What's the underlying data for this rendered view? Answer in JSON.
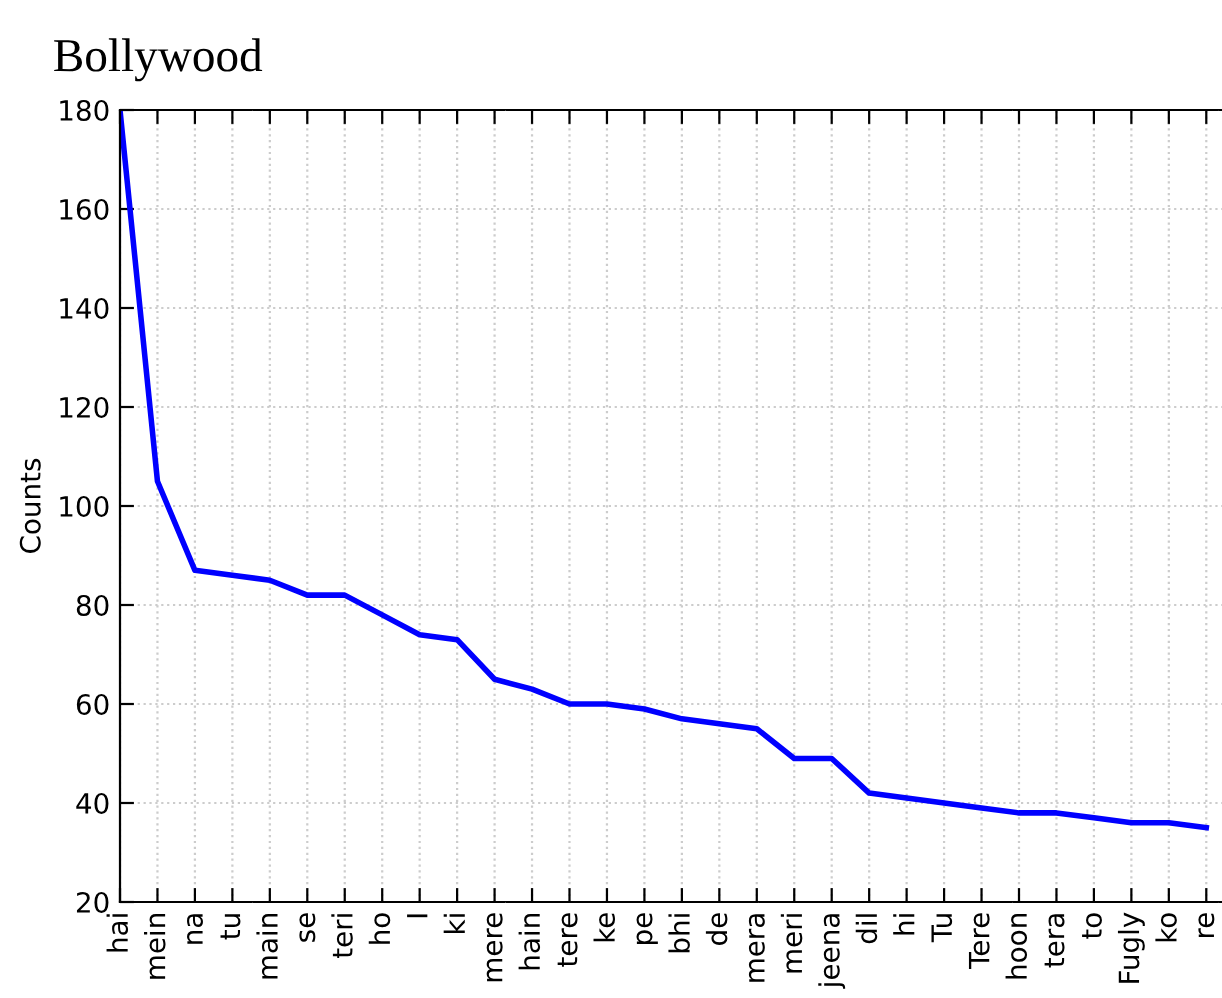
{
  "chart_data": {
    "type": "line",
    "title": "Bollywood",
    "ylabel": "Counts",
    "categories": [
      "hai",
      "mein",
      "na",
      "tu",
      "main",
      "se",
      "teri",
      "ho",
      "I",
      "ki",
      "mere",
      "hain",
      "tere",
      "ke",
      "pe",
      "bhi",
      "de",
      "mera",
      "meri",
      "jeena",
      "dil",
      "hi",
      "Tu",
      "Tere",
      "hoon",
      "tera",
      "to",
      "Fugly",
      "ko",
      "re"
    ],
    "series": [
      {
        "color": "#0000ff",
        "values": [
          180,
          105,
          87,
          86,
          85,
          82,
          82,
          78,
          74,
          73,
          65,
          63,
          60,
          60,
          59,
          57,
          56,
          55,
          49,
          49,
          42,
          41,
          40,
          39,
          38,
          38,
          37,
          36,
          36,
          35
        ]
      }
    ],
    "ylim": [
      20,
      180
    ],
    "yticks": [
      20,
      40,
      60,
      80,
      100,
      120,
      140,
      160,
      180
    ],
    "grid": true,
    "marker": "none",
    "line_style": "solid"
  }
}
